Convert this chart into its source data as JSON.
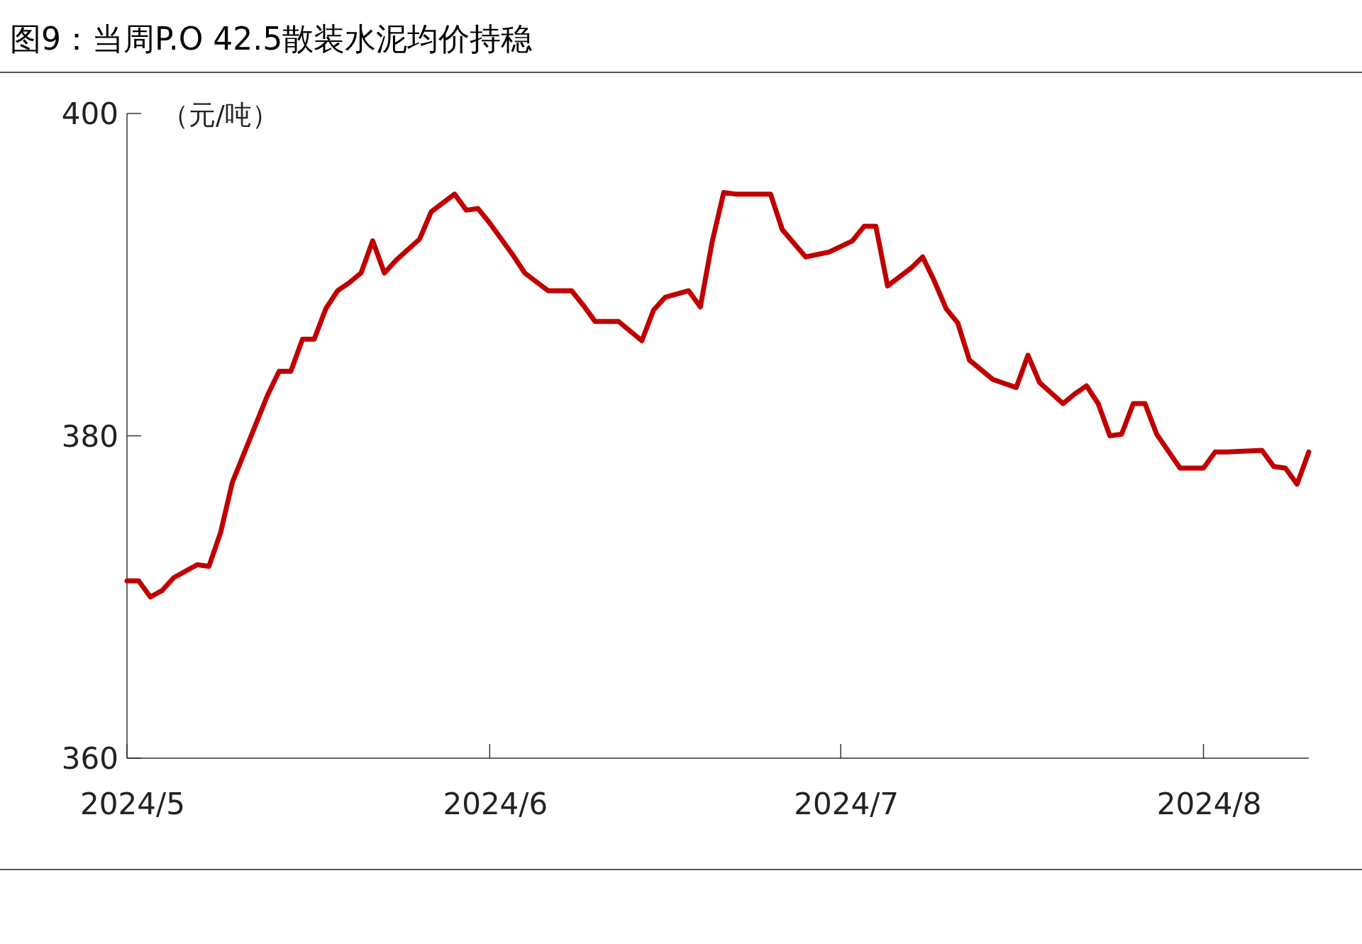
{
  "chart_data": {
    "type": "line",
    "title": "图9：当周P.O 42.5散装水泥均价持稳",
    "ylabel": "（元/吨）",
    "x": [
      "2024-05-01",
      "2024-05-02",
      "2024-05-03",
      "2024-05-04",
      "2024-05-05",
      "2024-05-07",
      "2024-05-08",
      "2024-05-09",
      "2024-05-10",
      "2024-05-12",
      "2024-05-13",
      "2024-05-14",
      "2024-05-15",
      "2024-05-16",
      "2024-05-17",
      "2024-05-18",
      "2024-05-19",
      "2024-05-20",
      "2024-05-21",
      "2024-05-22",
      "2024-05-23",
      "2024-05-24",
      "2024-05-26",
      "2024-05-27",
      "2024-05-29",
      "2024-05-30",
      "2024-05-31",
      "2024-06-01",
      "2024-06-03",
      "2024-06-04",
      "2024-06-06",
      "2024-06-08",
      "2024-06-09",
      "2024-06-10",
      "2024-06-12",
      "2024-06-14",
      "2024-06-15",
      "2024-06-16",
      "2024-06-18",
      "2024-06-19",
      "2024-06-20",
      "2024-06-21",
      "2024-06-22",
      "2024-06-25",
      "2024-06-26",
      "2024-06-28",
      "2024-06-30",
      "2024-07-02",
      "2024-07-03",
      "2024-07-04",
      "2024-07-05",
      "2024-07-07",
      "2024-07-08",
      "2024-07-09",
      "2024-07-10",
      "2024-07-11",
      "2024-07-12",
      "2024-07-14",
      "2024-07-16",
      "2024-07-17",
      "2024-07-18",
      "2024-07-20",
      "2024-07-21",
      "2024-07-22",
      "2024-07-23",
      "2024-07-24",
      "2024-07-25",
      "2024-07-26",
      "2024-07-27",
      "2024-07-28",
      "2024-07-30",
      "2024-08-01",
      "2024-08-02",
      "2024-08-03",
      "2024-08-06",
      "2024-08-07",
      "2024-08-08",
      "2024-08-09",
      "2024-08-10"
    ],
    "series": [
      {
        "color": "#c00000",
        "values": [
          371.0,
          371.0,
          370.0,
          370.4,
          371.2,
          372.0,
          371.9,
          374.0,
          377.1,
          380.7,
          382.5,
          384.0,
          384.0,
          386.0,
          386.0,
          387.9,
          389.0,
          389.5,
          390.1,
          392.1,
          390.1,
          390.9,
          392.2,
          393.9,
          395.0,
          394.0,
          394.1,
          393.2,
          391.2,
          390.1,
          389.0,
          389.0,
          388.1,
          387.1,
          387.1,
          385.9,
          387.8,
          388.6,
          389.0,
          388.0,
          392.0,
          395.1,
          395.0,
          395.0,
          392.8,
          391.1,
          391.4,
          392.1,
          393.0,
          393.0,
          389.3,
          390.4,
          391.1,
          389.6,
          387.9,
          387.0,
          384.7,
          383.5,
          383.0,
          385.0,
          383.3,
          382.0,
          382.6,
          383.1,
          382.0,
          380.0,
          380.1,
          382.0,
          382.0,
          380.1,
          378.0,
          378.0,
          379.0,
          379.0,
          379.1,
          378.1,
          378.0,
          377.0,
          379.0
        ]
      }
    ],
    "xlim": [
      "2024-05-01",
      "2024-08-10"
    ],
    "ylim": [
      360,
      400
    ],
    "xticks": [
      {
        "value": "2024-05-01",
        "label": "2024/5"
      },
      {
        "value": "2024-06-01",
        "label": "2024/6"
      },
      {
        "value": "2024-07-01",
        "label": "2024/7"
      },
      {
        "value": "2024-08-01",
        "label": "2024/8"
      }
    ],
    "yticks": [
      360,
      380,
      400
    ]
  }
}
